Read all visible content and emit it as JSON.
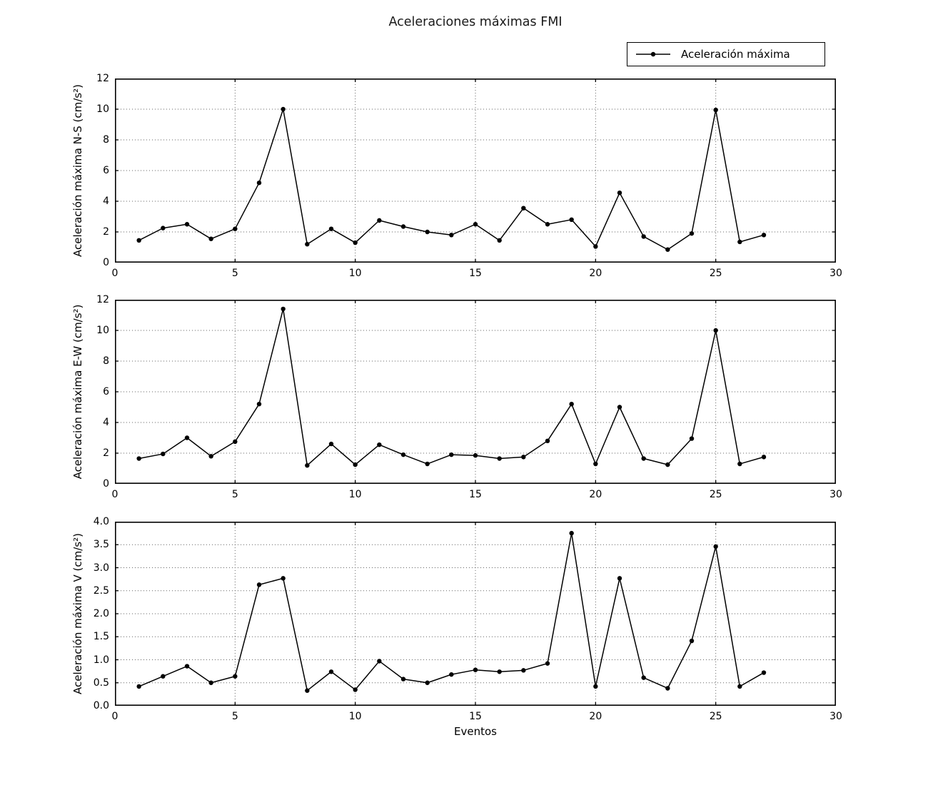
{
  "title": "Aceleraciones máximas FMI",
  "legend": {
    "label": "Aceleración máxima",
    "position": "upper right above first subplot"
  },
  "xlabel": "Eventos",
  "colors": {
    "line": "#000000",
    "marker": "#000000",
    "grid": "#646464",
    "axis": "#000000",
    "background": "#ffffff",
    "text": "#000000"
  },
  "chart_data": [
    {
      "type": "line",
      "series_name": "Aceleración máxima",
      "ylabel": "Aceleración máxima N-S (cm/s²)",
      "xlabel": "",
      "x": [
        1,
        2,
        3,
        4,
        5,
        6,
        7,
        8,
        9,
        10,
        11,
        12,
        13,
        14,
        15,
        16,
        17,
        18,
        19,
        20,
        21,
        22,
        23,
        24,
        25,
        26,
        27
      ],
      "values": [
        1.45,
        2.25,
        2.5,
        1.55,
        2.2,
        5.2,
        10.0,
        1.2,
        2.2,
        1.3,
        2.75,
        2.35,
        2.0,
        1.8,
        2.5,
        1.45,
        3.55,
        2.5,
        2.8,
        1.05,
        4.55,
        1.7,
        0.85,
        1.9,
        9.95,
        1.35,
        1.8
      ],
      "xlim": [
        0,
        30
      ],
      "ylim": [
        0,
        12
      ],
      "xtick_values": [
        0,
        5,
        10,
        15,
        20,
        25,
        30
      ],
      "xtick_labels": [
        "0",
        "5",
        "10",
        "15",
        "20",
        "25",
        "30"
      ],
      "ytick_values": [
        0,
        2,
        4,
        6,
        8,
        10,
        12
      ],
      "ytick_labels": [
        "0",
        "2",
        "4",
        "6",
        "8",
        "10",
        "12"
      ],
      "grid": true,
      "marker": "dot",
      "line_style": "solid"
    },
    {
      "type": "line",
      "series_name": "Aceleración máxima",
      "ylabel": "Aceleración máxima E-W (cm/s²)",
      "xlabel": "",
      "x": [
        1,
        2,
        3,
        4,
        5,
        6,
        7,
        8,
        9,
        10,
        11,
        12,
        13,
        14,
        15,
        16,
        17,
        18,
        19,
        20,
        21,
        22,
        23,
        24,
        25,
        26,
        27
      ],
      "values": [
        1.65,
        1.95,
        3.0,
        1.8,
        2.75,
        5.2,
        11.4,
        1.2,
        2.6,
        1.25,
        2.55,
        1.9,
        1.3,
        1.9,
        1.85,
        1.65,
        1.75,
        2.8,
        5.2,
        1.3,
        5.0,
        1.65,
        1.25,
        2.95,
        10.0,
        1.3,
        1.75
      ],
      "xlim": [
        0,
        30
      ],
      "ylim": [
        0,
        12
      ],
      "xtick_values": [
        0,
        5,
        10,
        15,
        20,
        25,
        30
      ],
      "xtick_labels": [
        "0",
        "5",
        "10",
        "15",
        "20",
        "25",
        "30"
      ],
      "ytick_values": [
        0,
        2,
        4,
        6,
        8,
        10,
        12
      ],
      "ytick_labels": [
        "0",
        "2",
        "4",
        "6",
        "8",
        "10",
        "12"
      ],
      "grid": true,
      "marker": "dot",
      "line_style": "solid"
    },
    {
      "type": "line",
      "series_name": "Aceleración máxima",
      "ylabel": "Aceleración máxima V (cm/s²)",
      "xlabel": "Eventos",
      "x": [
        1,
        2,
        3,
        4,
        5,
        6,
        7,
        8,
        9,
        10,
        11,
        12,
        13,
        14,
        15,
        16,
        17,
        18,
        19,
        20,
        21,
        22,
        23,
        24,
        25,
        26,
        27
      ],
      "values": [
        0.42,
        0.64,
        0.86,
        0.5,
        0.64,
        2.63,
        2.77,
        0.33,
        0.74,
        0.35,
        0.97,
        0.58,
        0.5,
        0.68,
        0.78,
        0.74,
        0.77,
        0.92,
        3.75,
        0.42,
        2.77,
        0.61,
        0.38,
        1.41,
        3.46,
        0.42,
        0.72
      ],
      "xlim": [
        0,
        30
      ],
      "ylim": [
        0,
        4.0
      ],
      "xtick_values": [
        0,
        5,
        10,
        15,
        20,
        25,
        30
      ],
      "xtick_labels": [
        "0",
        "5",
        "10",
        "15",
        "20",
        "25",
        "30"
      ],
      "ytick_values": [
        0,
        0.5,
        1.0,
        1.5,
        2.0,
        2.5,
        3.0,
        3.5,
        4.0
      ],
      "ytick_labels": [
        "0.0",
        "0.5",
        "1.0",
        "1.5",
        "2.0",
        "2.5",
        "3.0",
        "3.5",
        "4.0"
      ],
      "grid": true,
      "marker": "dot",
      "line_style": "solid"
    }
  ]
}
